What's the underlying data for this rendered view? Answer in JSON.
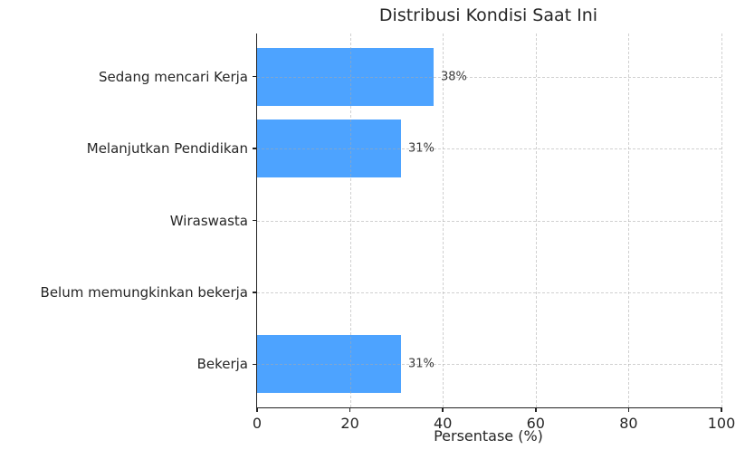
{
  "chart_data": {
    "type": "bar",
    "orientation": "horizontal",
    "title": "Distribusi Kondisi Saat Ini",
    "xlabel": "Persentase (%)",
    "ylabel": "",
    "categories": [
      "Sedang mencari Kerja",
      "Melanjutkan Pendidikan",
      "Wiraswasta",
      "Belum memungkinkan bekerja",
      "Bekerja"
    ],
    "values": [
      38,
      31,
      0,
      0,
      31
    ],
    "value_labels": [
      "38%",
      "31%",
      "",
      "",
      "31%"
    ],
    "xlim": [
      0,
      100
    ],
    "xticks": [
      0,
      20,
      40,
      60,
      80,
      100
    ],
    "grid": true,
    "grid_style": "dashed",
    "legend": false,
    "bar_color": "#4DA3FF",
    "axis_color": "#222222",
    "text_color": "#262626"
  }
}
